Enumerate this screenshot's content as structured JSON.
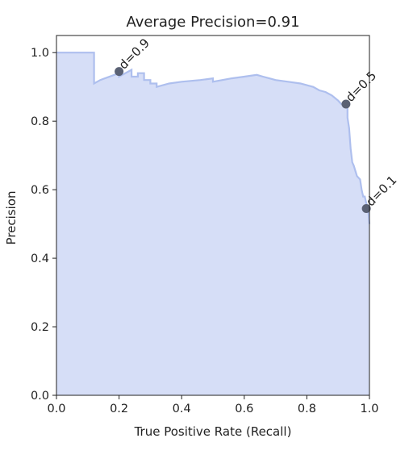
{
  "chart_data": {
    "type": "area",
    "title": "Average Precision=0.91",
    "xlabel": "True Positive Rate (Recall)",
    "ylabel": "Precision",
    "xlim": [
      0.0,
      1.0
    ],
    "ylim": [
      0.0,
      1.05
    ],
    "xticks": [
      "0.0",
      "0.2",
      "0.4",
      "0.6",
      "0.8",
      "1.0"
    ],
    "yticks": [
      "0.0",
      "0.2",
      "0.4",
      "0.6",
      "0.8",
      "1.0"
    ],
    "grid": false,
    "fill_color": "#d6def7",
    "line_color": "#aebfee",
    "marker_color": "#5a6174",
    "curve": {
      "x": [
        0.0,
        0.12,
        0.12,
        0.14,
        0.2,
        0.2,
        0.2,
        0.24,
        0.24,
        0.26,
        0.26,
        0.28,
        0.28,
        0.3,
        0.3,
        0.32,
        0.32,
        0.36,
        0.4,
        0.46,
        0.5,
        0.5,
        0.56,
        0.6,
        0.64,
        0.66,
        0.68,
        0.7,
        0.74,
        0.78,
        0.8,
        0.82,
        0.84,
        0.86,
        0.88,
        0.9,
        0.91,
        0.92,
        0.93,
        0.93,
        0.935,
        0.94,
        0.945,
        0.95,
        0.96,
        0.97,
        0.975,
        0.98,
        0.985,
        0.99,
        0.995,
        1.0
      ],
      "y": [
        1.0,
        1.0,
        0.91,
        0.92,
        0.94,
        0.95,
        0.93,
        0.95,
        0.93,
        0.93,
        0.94,
        0.94,
        0.92,
        0.92,
        0.91,
        0.91,
        0.9,
        0.91,
        0.915,
        0.92,
        0.925,
        0.915,
        0.925,
        0.93,
        0.935,
        0.93,
        0.925,
        0.92,
        0.915,
        0.91,
        0.905,
        0.9,
        0.89,
        0.885,
        0.875,
        0.86,
        0.85,
        0.85,
        0.84,
        0.81,
        0.78,
        0.72,
        0.68,
        0.67,
        0.64,
        0.63,
        0.6,
        0.58,
        0.58,
        0.56,
        0.55,
        0.5
      ]
    },
    "annotations": [
      {
        "label": "d=0.9",
        "x": 0.2,
        "y": 0.945
      },
      {
        "label": "d=0.5",
        "x": 0.925,
        "y": 0.85
      },
      {
        "label": "d=0.1",
        "x": 0.99,
        "y": 0.545
      }
    ]
  }
}
